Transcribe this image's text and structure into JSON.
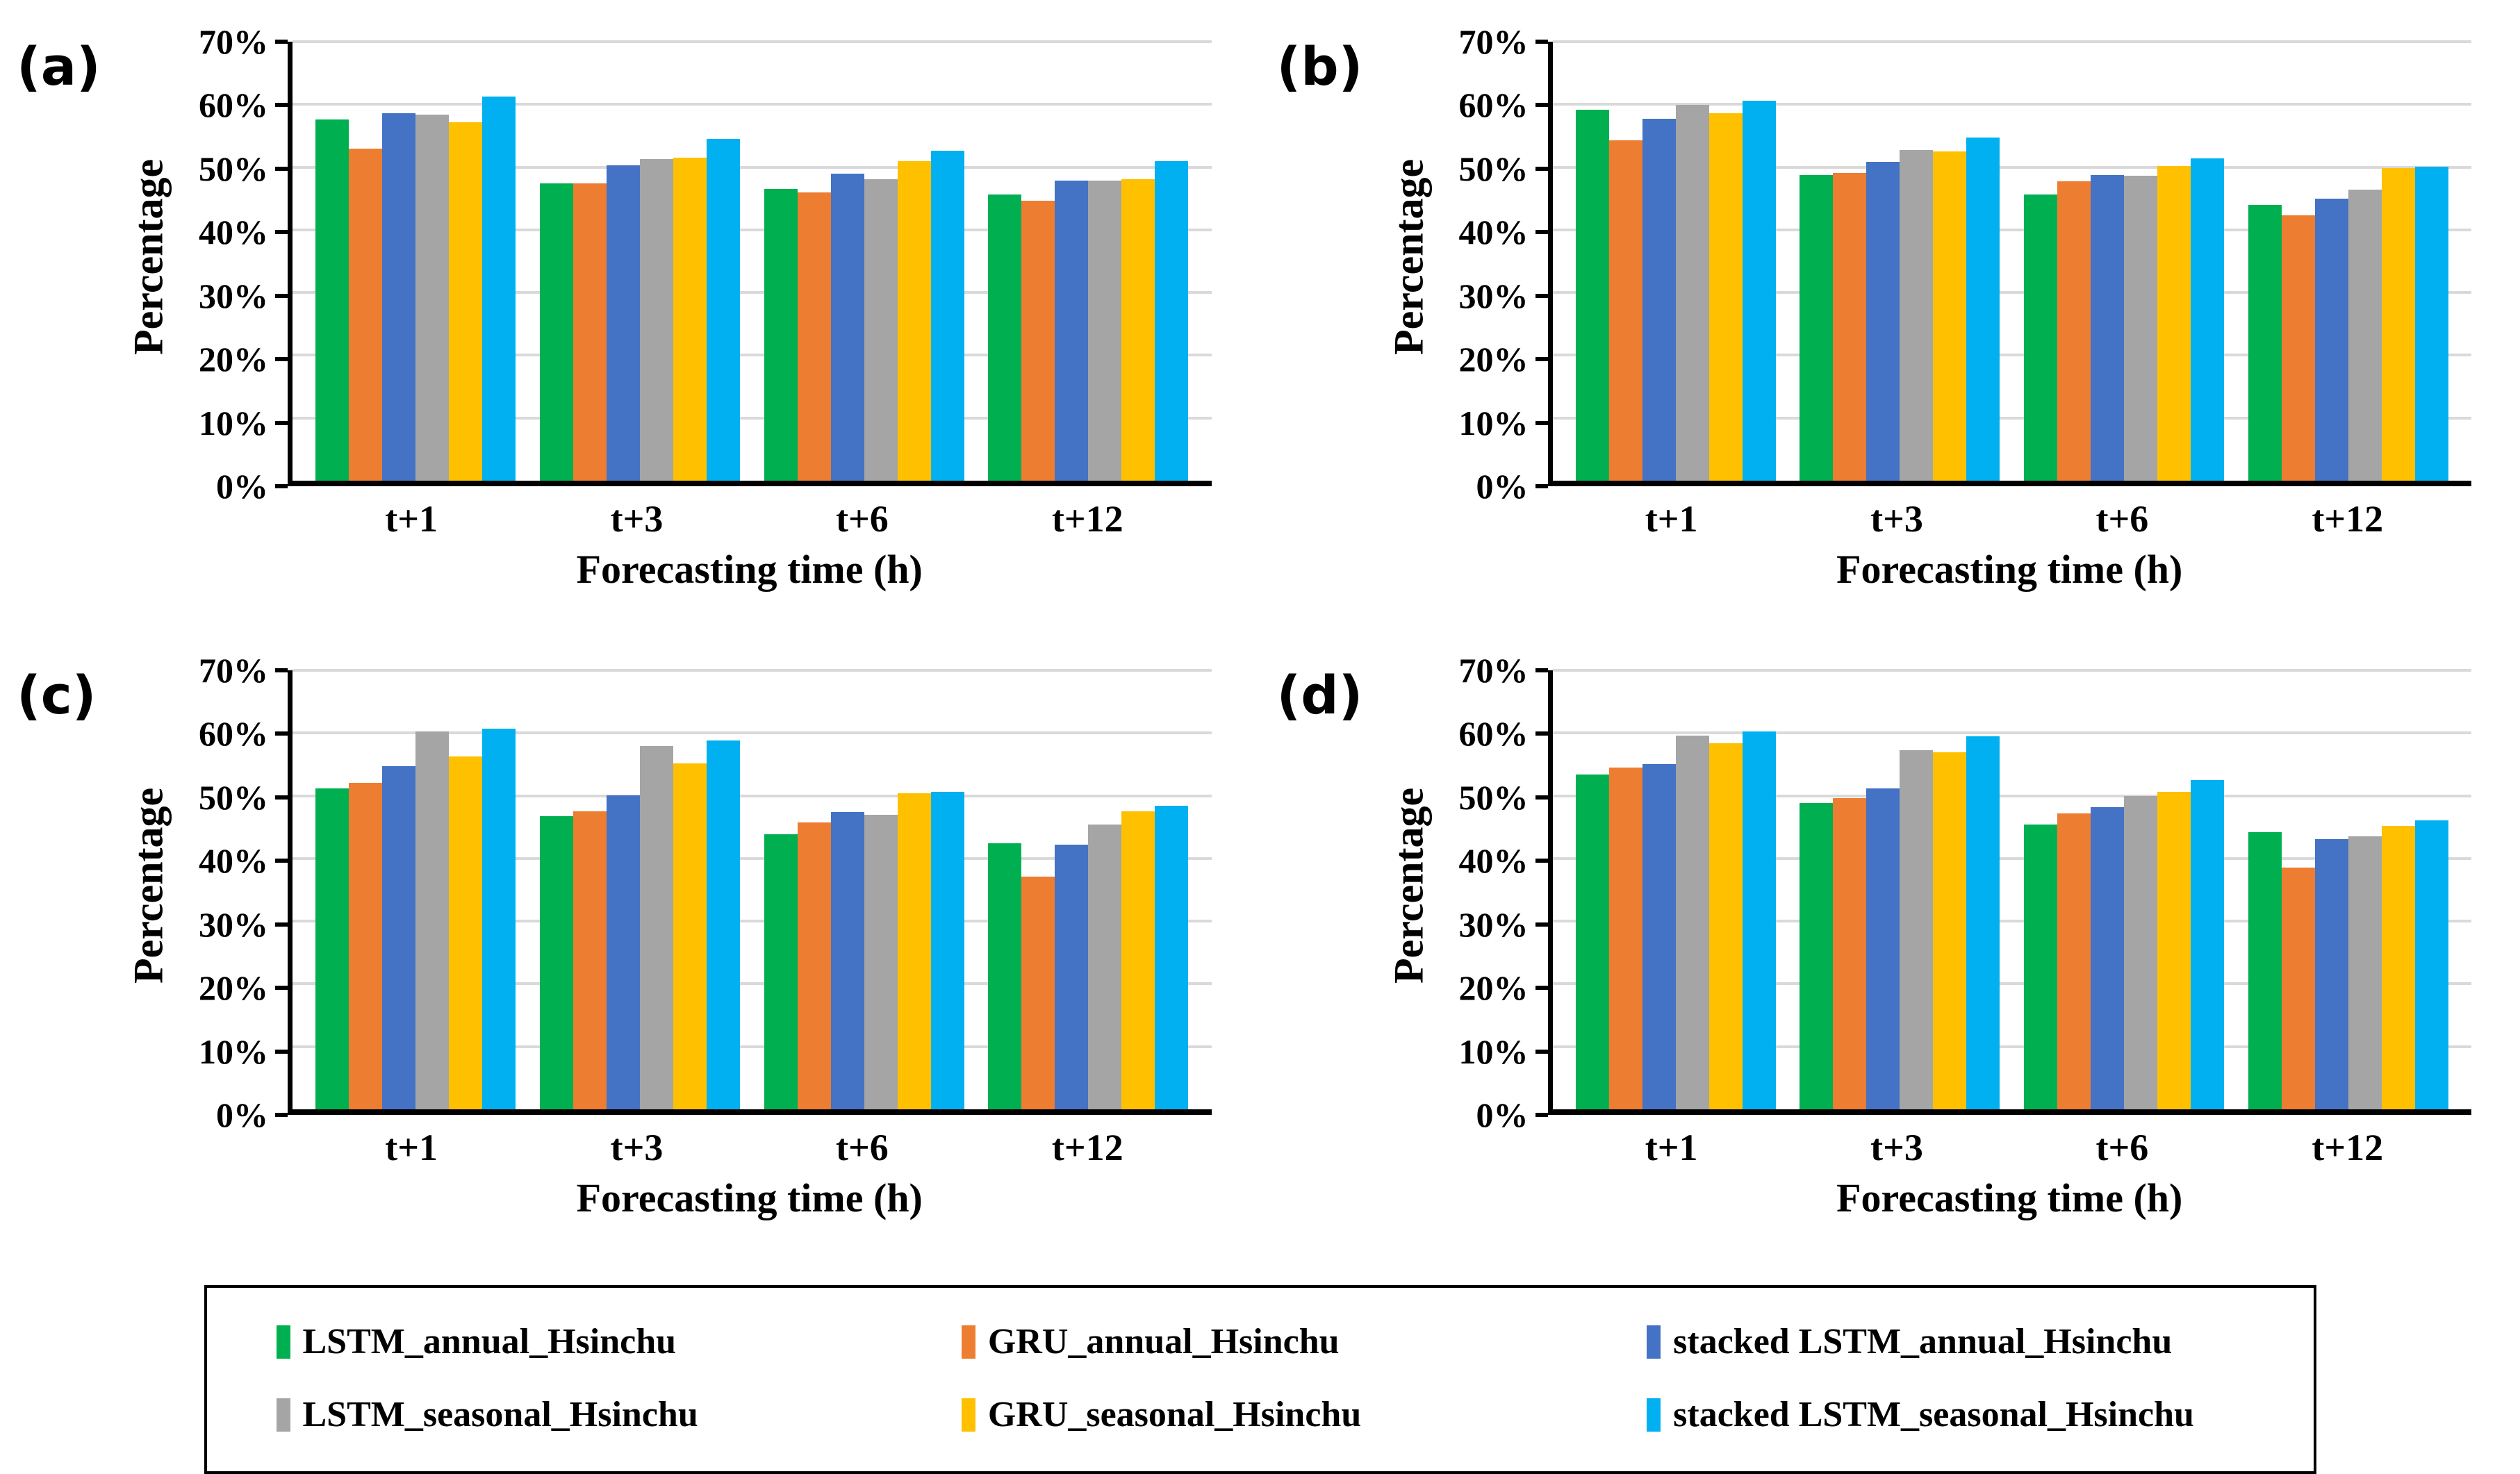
{
  "figure": {
    "ylabel": "Percentage",
    "xlabel": "Forecasting time (h)",
    "yticks": [
      "0%",
      "10%",
      "20%",
      "30%",
      "40%",
      "50%",
      "60%",
      "70%"
    ],
    "categories": [
      "t+1",
      "t+3",
      "t+6",
      "t+12"
    ],
    "panel_labels": [
      "(a)",
      "(b)",
      "(c)",
      "(d)"
    ],
    "colors": {
      "gridline": "#d9d9d9",
      "axis": "#000000"
    }
  },
  "legend": {
    "items": [
      {
        "label": "LSTM_annual_Hsinchu",
        "color": "#00B050"
      },
      {
        "label": "GRU_annual_Hsinchu",
        "color": "#ED7D31"
      },
      {
        "label": "stacked LSTM_annual_Hsinchu",
        "color": "#4472C4"
      },
      {
        "label": "LSTM_seasonal_Hsinchu",
        "color": "#A5A5A5"
      },
      {
        "label": "GRU_seasonal_Hsinchu",
        "color": "#FFC000"
      },
      {
        "label": "stacked LSTM_seasonal_Hsinchu",
        "color": "#00B0F0"
      }
    ]
  },
  "chart_data": [
    {
      "type": "bar",
      "panel_label": "(a)",
      "ylabel": "Percentage",
      "xlabel": "Forecasting time (h)",
      "ylim": [
        0,
        70
      ],
      "yticks_percent": [
        0,
        10,
        20,
        30,
        40,
        50,
        60,
        70
      ],
      "grid": true,
      "legend_position": "bottom-shared",
      "categories": [
        "t+1",
        "t+3",
        "t+6",
        "t+12"
      ],
      "series": [
        {
          "name": "LSTM_annual_Hsinchu",
          "color": "#00B050",
          "values": [
            57.6,
            47.4,
            46.5,
            45.6
          ]
        },
        {
          "name": "GRU_annual_Hsinchu",
          "color": "#ED7D31",
          "values": [
            52.9,
            47.4,
            46.0,
            44.6
          ]
        },
        {
          "name": "stacked LSTM_annual_Hsinchu",
          "color": "#4472C4",
          "values": [
            58.6,
            50.3,
            49.0,
            47.9
          ]
        },
        {
          "name": "LSTM_seasonal_Hsinchu",
          "color": "#A5A5A5",
          "values": [
            58.4,
            51.3,
            48.1,
            47.9
          ]
        },
        {
          "name": "GRU_seasonal_Hsinchu",
          "color": "#FFC000",
          "values": [
            57.2,
            51.5,
            50.9,
            48.1
          ]
        },
        {
          "name": "stacked LSTM_seasonal_Hsinchu",
          "color": "#00B0F0",
          "values": [
            61.3,
            54.5,
            52.6,
            50.9
          ]
        }
      ]
    },
    {
      "type": "bar",
      "panel_label": "(b)",
      "ylabel": "Percentage",
      "xlabel": "Forecasting time (h)",
      "ylim": [
        0,
        70
      ],
      "yticks_percent": [
        0,
        10,
        20,
        30,
        40,
        50,
        60,
        70
      ],
      "grid": true,
      "legend_position": "bottom-shared",
      "categories": [
        "t+1",
        "t+3",
        "t+6",
        "t+12"
      ],
      "series": [
        {
          "name": "LSTM_annual_Hsinchu",
          "color": "#00B050",
          "values": [
            59.2,
            48.7,
            45.6,
            44.0
          ]
        },
        {
          "name": "GRU_annual_Hsinchu",
          "color": "#ED7D31",
          "values": [
            54.3,
            49.1,
            47.7,
            42.3
          ]
        },
        {
          "name": "stacked LSTM_annual_Hsinchu",
          "color": "#4472C4",
          "values": [
            57.7,
            50.8,
            48.7,
            45.0
          ]
        },
        {
          "name": "LSTM_seasonal_Hsinchu",
          "color": "#A5A5A5",
          "values": [
            59.9,
            52.7,
            48.6,
            46.4
          ]
        },
        {
          "name": "GRU_seasonal_Hsinchu",
          "color": "#FFC000",
          "values": [
            58.6,
            52.5,
            50.2,
            49.8
          ]
        },
        {
          "name": "stacked LSTM_seasonal_Hsinchu",
          "color": "#00B0F0",
          "values": [
            60.6,
            54.7,
            51.4,
            50.1
          ]
        }
      ]
    },
    {
      "type": "bar",
      "panel_label": "(c)",
      "ylabel": "Percentage",
      "xlabel": "Forecasting time (h)",
      "ylim": [
        0,
        70
      ],
      "yticks_percent": [
        0,
        10,
        20,
        30,
        40,
        50,
        60,
        70
      ],
      "grid": true,
      "legend_position": "bottom-shared",
      "categories": [
        "t+1",
        "t+3",
        "t+6",
        "t+12"
      ],
      "series": [
        {
          "name": "LSTM_annual_Hsinchu",
          "color": "#00B050",
          "values": [
            51.2,
            46.7,
            43.9,
            42.4
          ]
        },
        {
          "name": "GRU_annual_Hsinchu",
          "color": "#ED7D31",
          "values": [
            52.1,
            47.5,
            45.7,
            37.1
          ]
        },
        {
          "name": "stacked LSTM_annual_Hsinchu",
          "color": "#4472C4",
          "values": [
            54.7,
            50.1,
            47.4,
            42.2
          ]
        },
        {
          "name": "LSTM_seasonal_Hsinchu",
          "color": "#A5A5A5",
          "values": [
            60.3,
            57.9,
            47.0,
            45.4
          ]
        },
        {
          "name": "GRU_seasonal_Hsinchu",
          "color": "#FFC000",
          "values": [
            56.3,
            55.2,
            50.4,
            47.5
          ]
        },
        {
          "name": "stacked LSTM_seasonal_Hsinchu",
          "color": "#00B0F0",
          "values": [
            60.7,
            58.8,
            50.6,
            48.4
          ]
        }
      ]
    },
    {
      "type": "bar",
      "panel_label": "(d)",
      "ylabel": "Percentage",
      "xlabel": "Forecasting time (h)",
      "ylim": [
        0,
        70
      ],
      "yticks_percent": [
        0,
        10,
        20,
        30,
        40,
        50,
        60,
        70
      ],
      "grid": true,
      "legend_position": "bottom-shared",
      "categories": [
        "t+1",
        "t+3",
        "t+6",
        "t+12"
      ],
      "series": [
        {
          "name": "LSTM_annual_Hsinchu",
          "color": "#00B050",
          "values": [
            53.4,
            48.8,
            45.4,
            44.2
          ]
        },
        {
          "name": "GRU_annual_Hsinchu",
          "color": "#ED7D31",
          "values": [
            54.5,
            49.6,
            47.2,
            38.5
          ]
        },
        {
          "name": "stacked LSTM_annual_Hsinchu",
          "color": "#4472C4",
          "values": [
            55.0,
            51.2,
            48.2,
            43.1
          ]
        },
        {
          "name": "LSTM_seasonal_Hsinchu",
          "color": "#A5A5A5",
          "values": [
            59.6,
            57.3,
            50.0,
            43.5
          ]
        },
        {
          "name": "GRU_seasonal_Hsinchu",
          "color": "#FFC000",
          "values": [
            58.4,
            56.9,
            50.6,
            45.2
          ]
        },
        {
          "name": "stacked LSTM_seasonal_Hsinchu",
          "color": "#00B0F0",
          "values": [
            60.2,
            59.5,
            52.5,
            46.1
          ]
        }
      ]
    }
  ]
}
